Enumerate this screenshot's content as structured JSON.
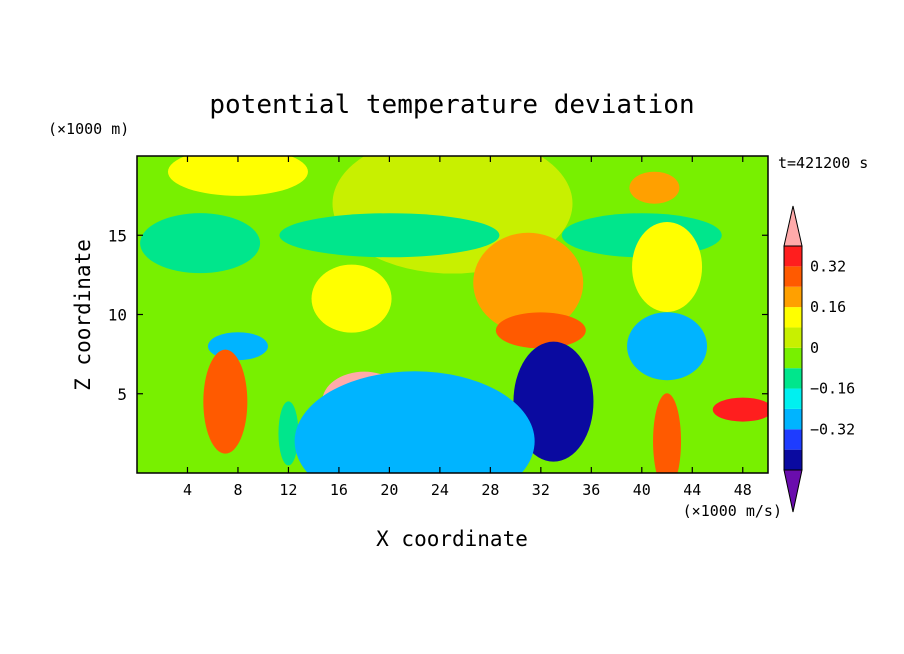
{
  "chart_data": {
    "type": "heatmap",
    "title": "potential temperature deviation",
    "xlabel": "X coordinate",
    "ylabel": "Z coordinate",
    "x_unit": "(×1000 m/s)",
    "y_unit": "(×1000 m)",
    "time_label": "t=421200 s",
    "xlim": [
      0,
      50
    ],
    "ylim": [
      0,
      20
    ],
    "xticks": [
      "4",
      "8",
      "12",
      "16",
      "20",
      "24",
      "28",
      "32",
      "36",
      "40",
      "44",
      "48"
    ],
    "xtick_values": [
      4,
      8,
      12,
      16,
      20,
      24,
      28,
      32,
      36,
      40,
      44,
      48
    ],
    "yticks": [
      "5",
      "10",
      "15"
    ],
    "ytick_values": [
      5,
      10,
      15
    ],
    "colorbar": {
      "levels": [
        -0.48,
        -0.4,
        -0.32,
        -0.24,
        -0.16,
        -0.08,
        0,
        0.08,
        0.16,
        0.24,
        0.32,
        0.4
      ],
      "tick_labels": [
        "0.32",
        "0.16",
        "0",
        "−0.16",
        "−0.32"
      ],
      "tick_values": [
        0.32,
        0.16,
        0,
        -0.16,
        -0.32
      ],
      "colors": [
        "#6a0dad",
        "#0a0aa0",
        "#1e3cff",
        "#00b4ff",
        "#00f0f0",
        "#00e68c",
        "#78f000",
        "#c8f000",
        "#ffff00",
        "#ffa000",
        "#ff5a00",
        "#ff1e1e",
        "#ffaaaa"
      ]
    },
    "regions": [
      {
        "x": 25,
        "z": 17,
        "value": 0.05
      },
      {
        "x": 8,
        "z": 19,
        "value": 0.12
      },
      {
        "x": 20,
        "z": 15,
        "value": -0.12
      },
      {
        "x": 40,
        "z": 15,
        "value": -0.12
      },
      {
        "x": 5,
        "z": 14.5,
        "value": -0.1
      },
      {
        "x": 12,
        "z": 10,
        "value": -0.05
      },
      {
        "x": 17,
        "z": 11,
        "value": 0.12
      },
      {
        "x": 31,
        "z": 12,
        "value": 0.16
      },
      {
        "x": 32,
        "z": 9,
        "value": 0.24
      },
      {
        "x": 42,
        "z": 13,
        "value": 0.1
      },
      {
        "x": 41,
        "z": 18,
        "value": 0.2
      },
      {
        "x": 8,
        "z": 8,
        "value": -0.3
      },
      {
        "x": 42,
        "z": 8,
        "value": -0.3
      },
      {
        "x": 7,
        "z": 4.5,
        "value": 0.28
      },
      {
        "x": 18,
        "z": 4.5,
        "value": 0.4
      },
      {
        "x": 33,
        "z": 4.5,
        "value": -0.45
      },
      {
        "x": 26,
        "z": 3.5,
        "value": -0.2
      },
      {
        "x": 12,
        "z": 2.5,
        "value": -0.1
      },
      {
        "x": 42,
        "z": 2,
        "value": 0.28
      },
      {
        "x": 48,
        "z": 4,
        "value": 0.38
      },
      {
        "x": 22,
        "z": 2,
        "value": -0.32
      }
    ]
  }
}
